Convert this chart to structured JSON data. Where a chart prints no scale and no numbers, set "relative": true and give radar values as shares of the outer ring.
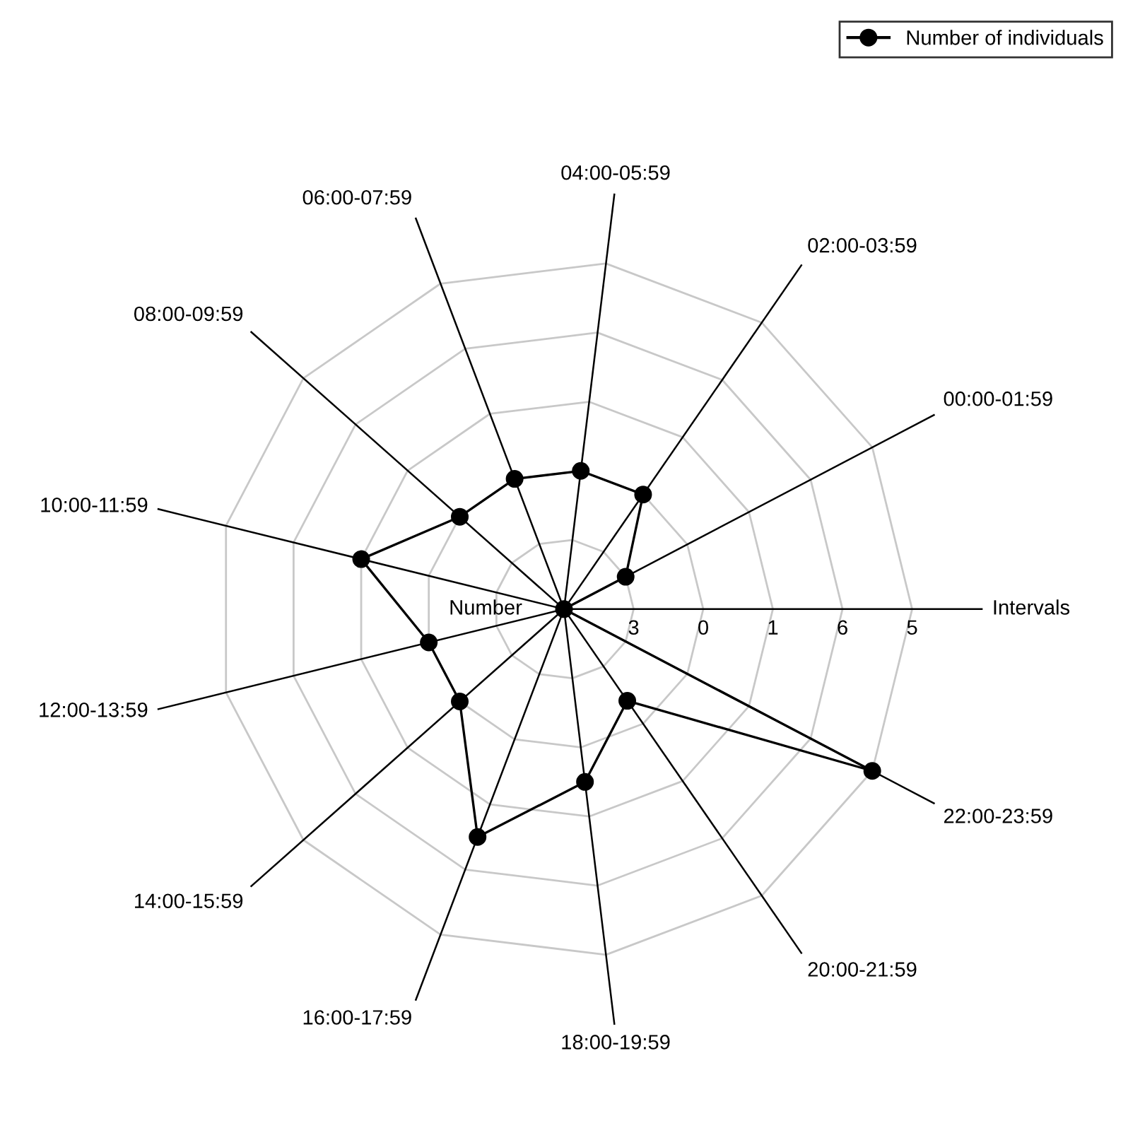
{
  "chart_data": {
    "type": "radar",
    "relative": true,
    "categories": [
      "04:00-05:59",
      "02:00-03:59",
      "00:00-01:59",
      "Intervals",
      "22:00-23:59",
      "20:00-21:59",
      "18:00-19:59",
      "16:00-17:59",
      "14:00-15:59",
      "12:00-13:59",
      "10:00-11:59",
      "08:00-09:59",
      "06:00-07:59"
    ],
    "series": [
      {
        "name": "Number of individuals",
        "color": "#000000",
        "values": [
          0.4,
          0.4,
          0.2,
          0,
          1,
          0.32,
          0.5,
          0.7,
          0.4,
          0.4,
          0.6,
          0.4,
          0.4
        ]
      }
    ],
    "annotations": [
      "Number",
      "3",
      "0",
      "1",
      "6",
      "5"
    ],
    "grid": true,
    "legend": "top right",
    "marker": "circle",
    "line_style": "solid"
  }
}
